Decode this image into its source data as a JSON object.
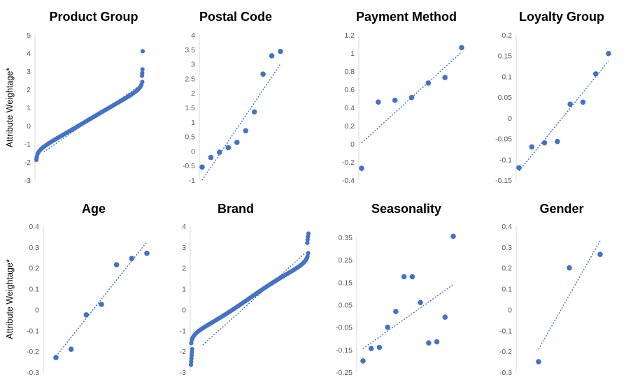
{
  "chart_data": [
    {
      "type": "scatter",
      "title": "Product Group",
      "ylabel": "Attribute Weightage*",
      "ylim": [
        -3,
        5
      ],
      "yticks": [
        -3,
        -2,
        -1,
        0,
        1,
        2,
        3,
        4,
        5
      ],
      "trendline": "linear",
      "generator": "qq",
      "n": 130,
      "tail_low": [
        [
          0,
          -1.88
        ],
        [
          0.002,
          -1.78
        ],
        [
          0.004,
          -1.72
        ]
      ],
      "tail_high": [
        [
          0.994,
          2.75
        ],
        [
          0.996,
          2.9
        ],
        [
          0.998,
          3.1
        ],
        [
          1,
          4.1
        ]
      ],
      "trend_line": [
        [
          0.07,
          -1.45
        ],
        [
          0.97,
          2.2
        ]
      ]
    },
    {
      "type": "scatter",
      "title": "Postal Code",
      "ylim": [
        -1,
        4
      ],
      "yticks": [
        -1,
        -0.5,
        0,
        0.5,
        1,
        1.5,
        2,
        2.5,
        3,
        3.5,
        4
      ],
      "trendline": "linear",
      "x": [
        1,
        2,
        3,
        4,
        5,
        6,
        7,
        8,
        9,
        10
      ],
      "y": [
        -0.55,
        -0.22,
        -0.04,
        0.12,
        0.3,
        0.7,
        1.35,
        2.65,
        3.28,
        3.43
      ],
      "trend_line": [
        [
          1,
          -1.0
        ],
        [
          10,
          3.0
        ]
      ]
    },
    {
      "type": "scatter",
      "title": "Payment Method",
      "ylim": [
        -0.4,
        1.2
      ],
      "yticks": [
        -0.4,
        -0.2,
        0,
        0.2,
        0.4,
        0.6,
        0.8,
        1,
        1.2
      ],
      "trendline": "linear",
      "x": [
        1,
        2,
        3,
        4,
        5,
        6,
        7
      ],
      "y": [
        -0.27,
        0.46,
        0.48,
        0.51,
        0.67,
        0.73,
        1.06
      ],
      "trend_line": [
        [
          1,
          0.01
        ],
        [
          7,
          1.01
        ]
      ]
    },
    {
      "type": "scatter",
      "title": "Loyalty Group",
      "ylim": [
        -0.15,
        0.2
      ],
      "yticks": [
        -0.15,
        -0.1,
        -0.05,
        0,
        0.05,
        0.1,
        0.15,
        0.2
      ],
      "trendline": "linear",
      "x": [
        1,
        2,
        3,
        4,
        5,
        6,
        7,
        8
      ],
      "y": [
        -0.12,
        -0.07,
        -0.06,
        -0.057,
        0.033,
        0.038,
        0.106,
        0.155
      ],
      "trend_line": [
        [
          1,
          -0.128
        ],
        [
          8,
          0.137
        ]
      ]
    },
    {
      "type": "scatter",
      "title": "Age",
      "ylabel": "Attribute Weightage*",
      "ylim": [
        -0.3,
        0.4
      ],
      "yticks": [
        -0.3,
        -0.2,
        -0.1,
        0,
        0.1,
        0.2,
        0.3,
        0.4
      ],
      "trendline": "linear",
      "x": [
        1,
        2,
        3,
        4,
        5,
        6,
        7
      ],
      "y": [
        -0.23,
        -0.19,
        -0.025,
        0.025,
        0.215,
        0.245,
        0.27
      ],
      "trend_line": [
        [
          1,
          -0.225
        ],
        [
          7,
          0.325
        ]
      ]
    },
    {
      "type": "scatter",
      "title": "Brand",
      "ylim": [
        -3,
        4
      ],
      "yticks": [
        -3,
        -2,
        -1,
        0,
        1,
        2,
        3,
        4
      ],
      "trendline": "linear",
      "generator": "qq",
      "n": 190,
      "tail_low": [
        [
          0,
          -2.65
        ],
        [
          0.002,
          -2.5
        ],
        [
          0.004,
          -2.35
        ],
        [
          0.006,
          -2.2
        ],
        [
          0.008,
          -2.05
        ],
        [
          0.01,
          -1.9
        ]
      ],
      "tail_high": [
        [
          0.99,
          3.2
        ],
        [
          0.993,
          3.35
        ],
        [
          0.996,
          3.5
        ],
        [
          1,
          3.65
        ]
      ],
      "trend_line": [
        [
          0.1,
          -1.7
        ],
        [
          0.97,
          2.7
        ]
      ]
    },
    {
      "type": "scatter",
      "title": "Seasonality",
      "ylim": [
        -0.25,
        0.35
      ],
      "yticks": [
        -0.25,
        -0.15,
        -0.05,
        0.05,
        0.15,
        0.25,
        0.35
      ],
      "trendline": "linear",
      "x": [
        1,
        2,
        3,
        4,
        5,
        6,
        7,
        8,
        9,
        10,
        11,
        12
      ],
      "y": [
        -0.2,
        -0.145,
        -0.14,
        -0.05,
        0.02,
        0.175,
        0.175,
        0.06,
        -0.12,
        -0.115,
        -0.005,
        0.355
      ],
      "trend_line": [
        [
          1,
          -0.145
        ],
        [
          12,
          0.14
        ]
      ]
    },
    {
      "type": "scatter",
      "title": "Gender",
      "ylim": [
        -0.3,
        0.4
      ],
      "yticks": [
        -0.3,
        -0.2,
        -0.1,
        0,
        0.1,
        0.2,
        0.3,
        0.4
      ],
      "trendline": "linear",
      "x": [
        1,
        2,
        3
      ],
      "y": [
        -0.25,
        0.2,
        0.265
      ],
      "trend_line": [
        [
          1,
          -0.19
        ],
        [
          3,
          0.33
        ]
      ]
    }
  ]
}
